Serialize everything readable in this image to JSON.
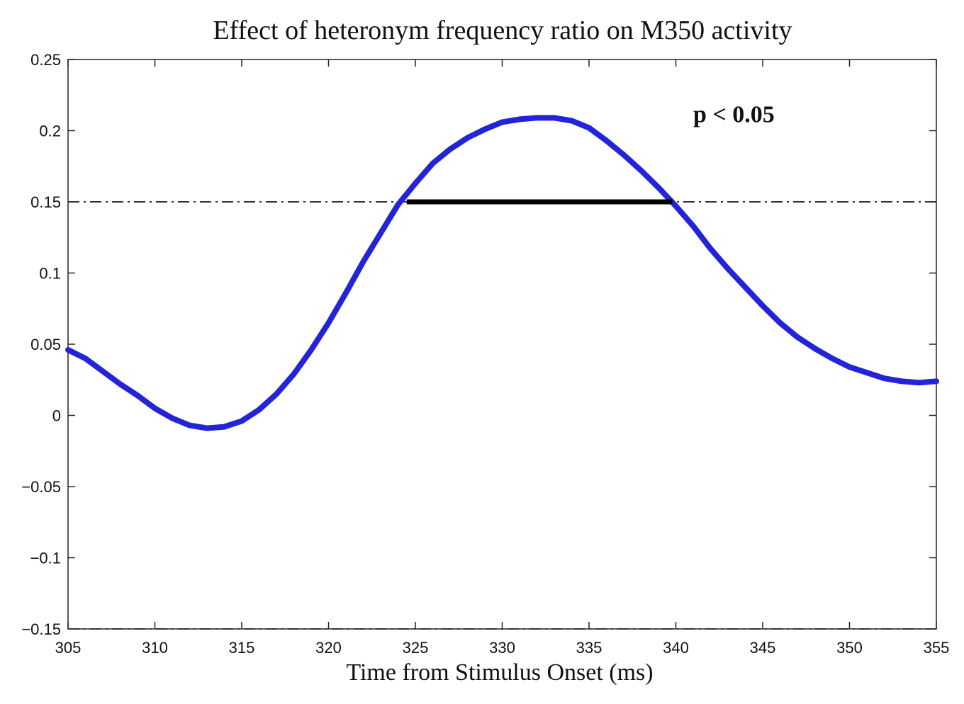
{
  "chart_data": {
    "type": "line",
    "title": "Effect of heteronym frequency ratio on M350 activity",
    "xlabel": "Time from Stimulus Onset (ms)",
    "ylabel": "",
    "xlim": [
      305,
      355
    ],
    "ylim": [
      -0.15,
      0.25
    ],
    "x_ticks": [
      305,
      310,
      315,
      320,
      325,
      330,
      335,
      340,
      345,
      350,
      355
    ],
    "y_ticks": [
      0.25,
      0.2,
      0.15,
      0.1,
      0.05,
      0,
      -0.05,
      -0.1,
      -0.15
    ],
    "y_tick_labels": [
      "0.25",
      "0.2",
      "0.15",
      "0.1",
      "0.05",
      "0",
      "−0.05",
      "−0.1",
      "−0.15"
    ],
    "grid": false,
    "series": [
      {
        "color": "#2323d8",
        "x": [
          305,
          306,
          307,
          308,
          309,
          310,
          311,
          312,
          313,
          314,
          315,
          316,
          317,
          318,
          319,
          320,
          321,
          322,
          323,
          324,
          325,
          326,
          327,
          328,
          329,
          330,
          331,
          332,
          333,
          334,
          335,
          336,
          337,
          338,
          339,
          340,
          341,
          342,
          343,
          344,
          345,
          346,
          347,
          348,
          349,
          350,
          351,
          352,
          353,
          354,
          355
        ],
        "y": [
          0.046,
          0.04,
          0.031,
          0.022,
          0.014,
          0.005,
          -0.002,
          -0.007,
          -0.009,
          -0.008,
          -0.004,
          0.004,
          0.015,
          0.029,
          0.046,
          0.065,
          0.086,
          0.108,
          0.128,
          0.148,
          0.163,
          0.177,
          0.187,
          0.195,
          0.201,
          0.206,
          0.208,
          0.209,
          0.209,
          0.207,
          0.202,
          0.193,
          0.183,
          0.172,
          0.16,
          0.147,
          0.133,
          0.117,
          0.103,
          0.09,
          0.077,
          0.065,
          0.055,
          0.047,
          0.04,
          0.034,
          0.03,
          0.026,
          0.024,
          0.023,
          0.024
        ]
      }
    ],
    "threshold_lines": [
      {
        "y": 0.15,
        "style": "dash-dot",
        "color": "#333333"
      },
      {
        "y": -0.15,
        "style": "dash-dot",
        "color": "#333333"
      }
    ],
    "significance_bar": {
      "x_start": 324.5,
      "x_end": 339.8,
      "y": 0.15,
      "color": "#000000"
    },
    "annotation": {
      "text": "p < 0.05",
      "x": 341,
      "y": 0.206
    }
  }
}
